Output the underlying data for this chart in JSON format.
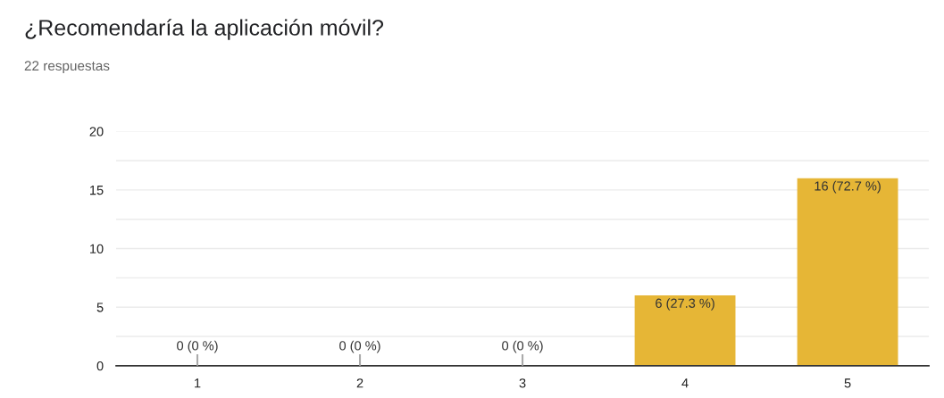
{
  "chart_data": {
    "type": "bar",
    "title": "¿Recomendaría la aplicación móvil?",
    "subtitle": "22 respuestas",
    "categories": [
      "1",
      "2",
      "3",
      "4",
      "5"
    ],
    "values": [
      0,
      0,
      0,
      6,
      16
    ],
    "value_labels": [
      "0 (0 %)",
      "0 (0 %)",
      "0 (0 %)",
      "6 (27.3 %)",
      "16 (72.7 %)"
    ],
    "color": "#e6b636",
    "ylim": [
      0,
      20
    ],
    "yticks": [
      0,
      {
        "value": 2.5,
        "label": null
      },
      5,
      {
        "value": 7.5,
        "label": null
      },
      10,
      {
        "value": 12.5,
        "label": null
      },
      15,
      {
        "value": 17.5,
        "label": null
      },
      20
    ],
    "grid": "y",
    "legend": false
  }
}
